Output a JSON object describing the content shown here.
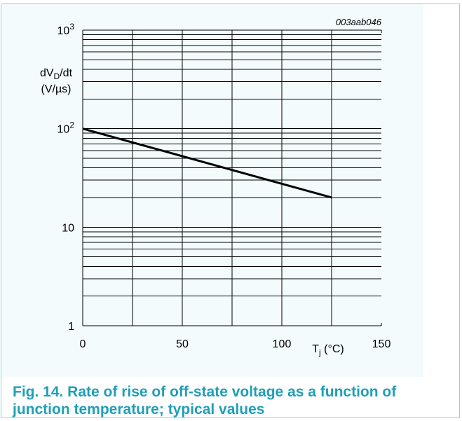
{
  "chart_data": {
    "type": "line",
    "figure_id": "003aab046",
    "ylabel_line1": "dV",
    "ylabel_sub": "D",
    "ylabel_line1_suffix": "/dt",
    "ylabel_line2": "(V/µs)",
    "xlabel_main": "T",
    "xlabel_sub": "j",
    "xlabel_suffix": " (°C)",
    "y_scale": "log",
    "ylim": [
      1,
      1000
    ],
    "xlim": [
      0,
      150
    ],
    "x_ticks": [
      0,
      50,
      100,
      150
    ],
    "y_ticks": [
      {
        "value": 1,
        "base": "1",
        "exp": ""
      },
      {
        "value": 10,
        "base": "10",
        "exp": ""
      },
      {
        "value": 100,
        "base": "10",
        "exp": "2"
      },
      {
        "value": 1000,
        "base": "10",
        "exp": "3"
      }
    ],
    "grid": true,
    "series": [
      {
        "x": [
          0,
          125
        ],
        "y": [
          100,
          20
        ]
      }
    ]
  },
  "caption": "Fig. 14. Rate of rise of off-state voltage as a function of junction temperature; typical values"
}
